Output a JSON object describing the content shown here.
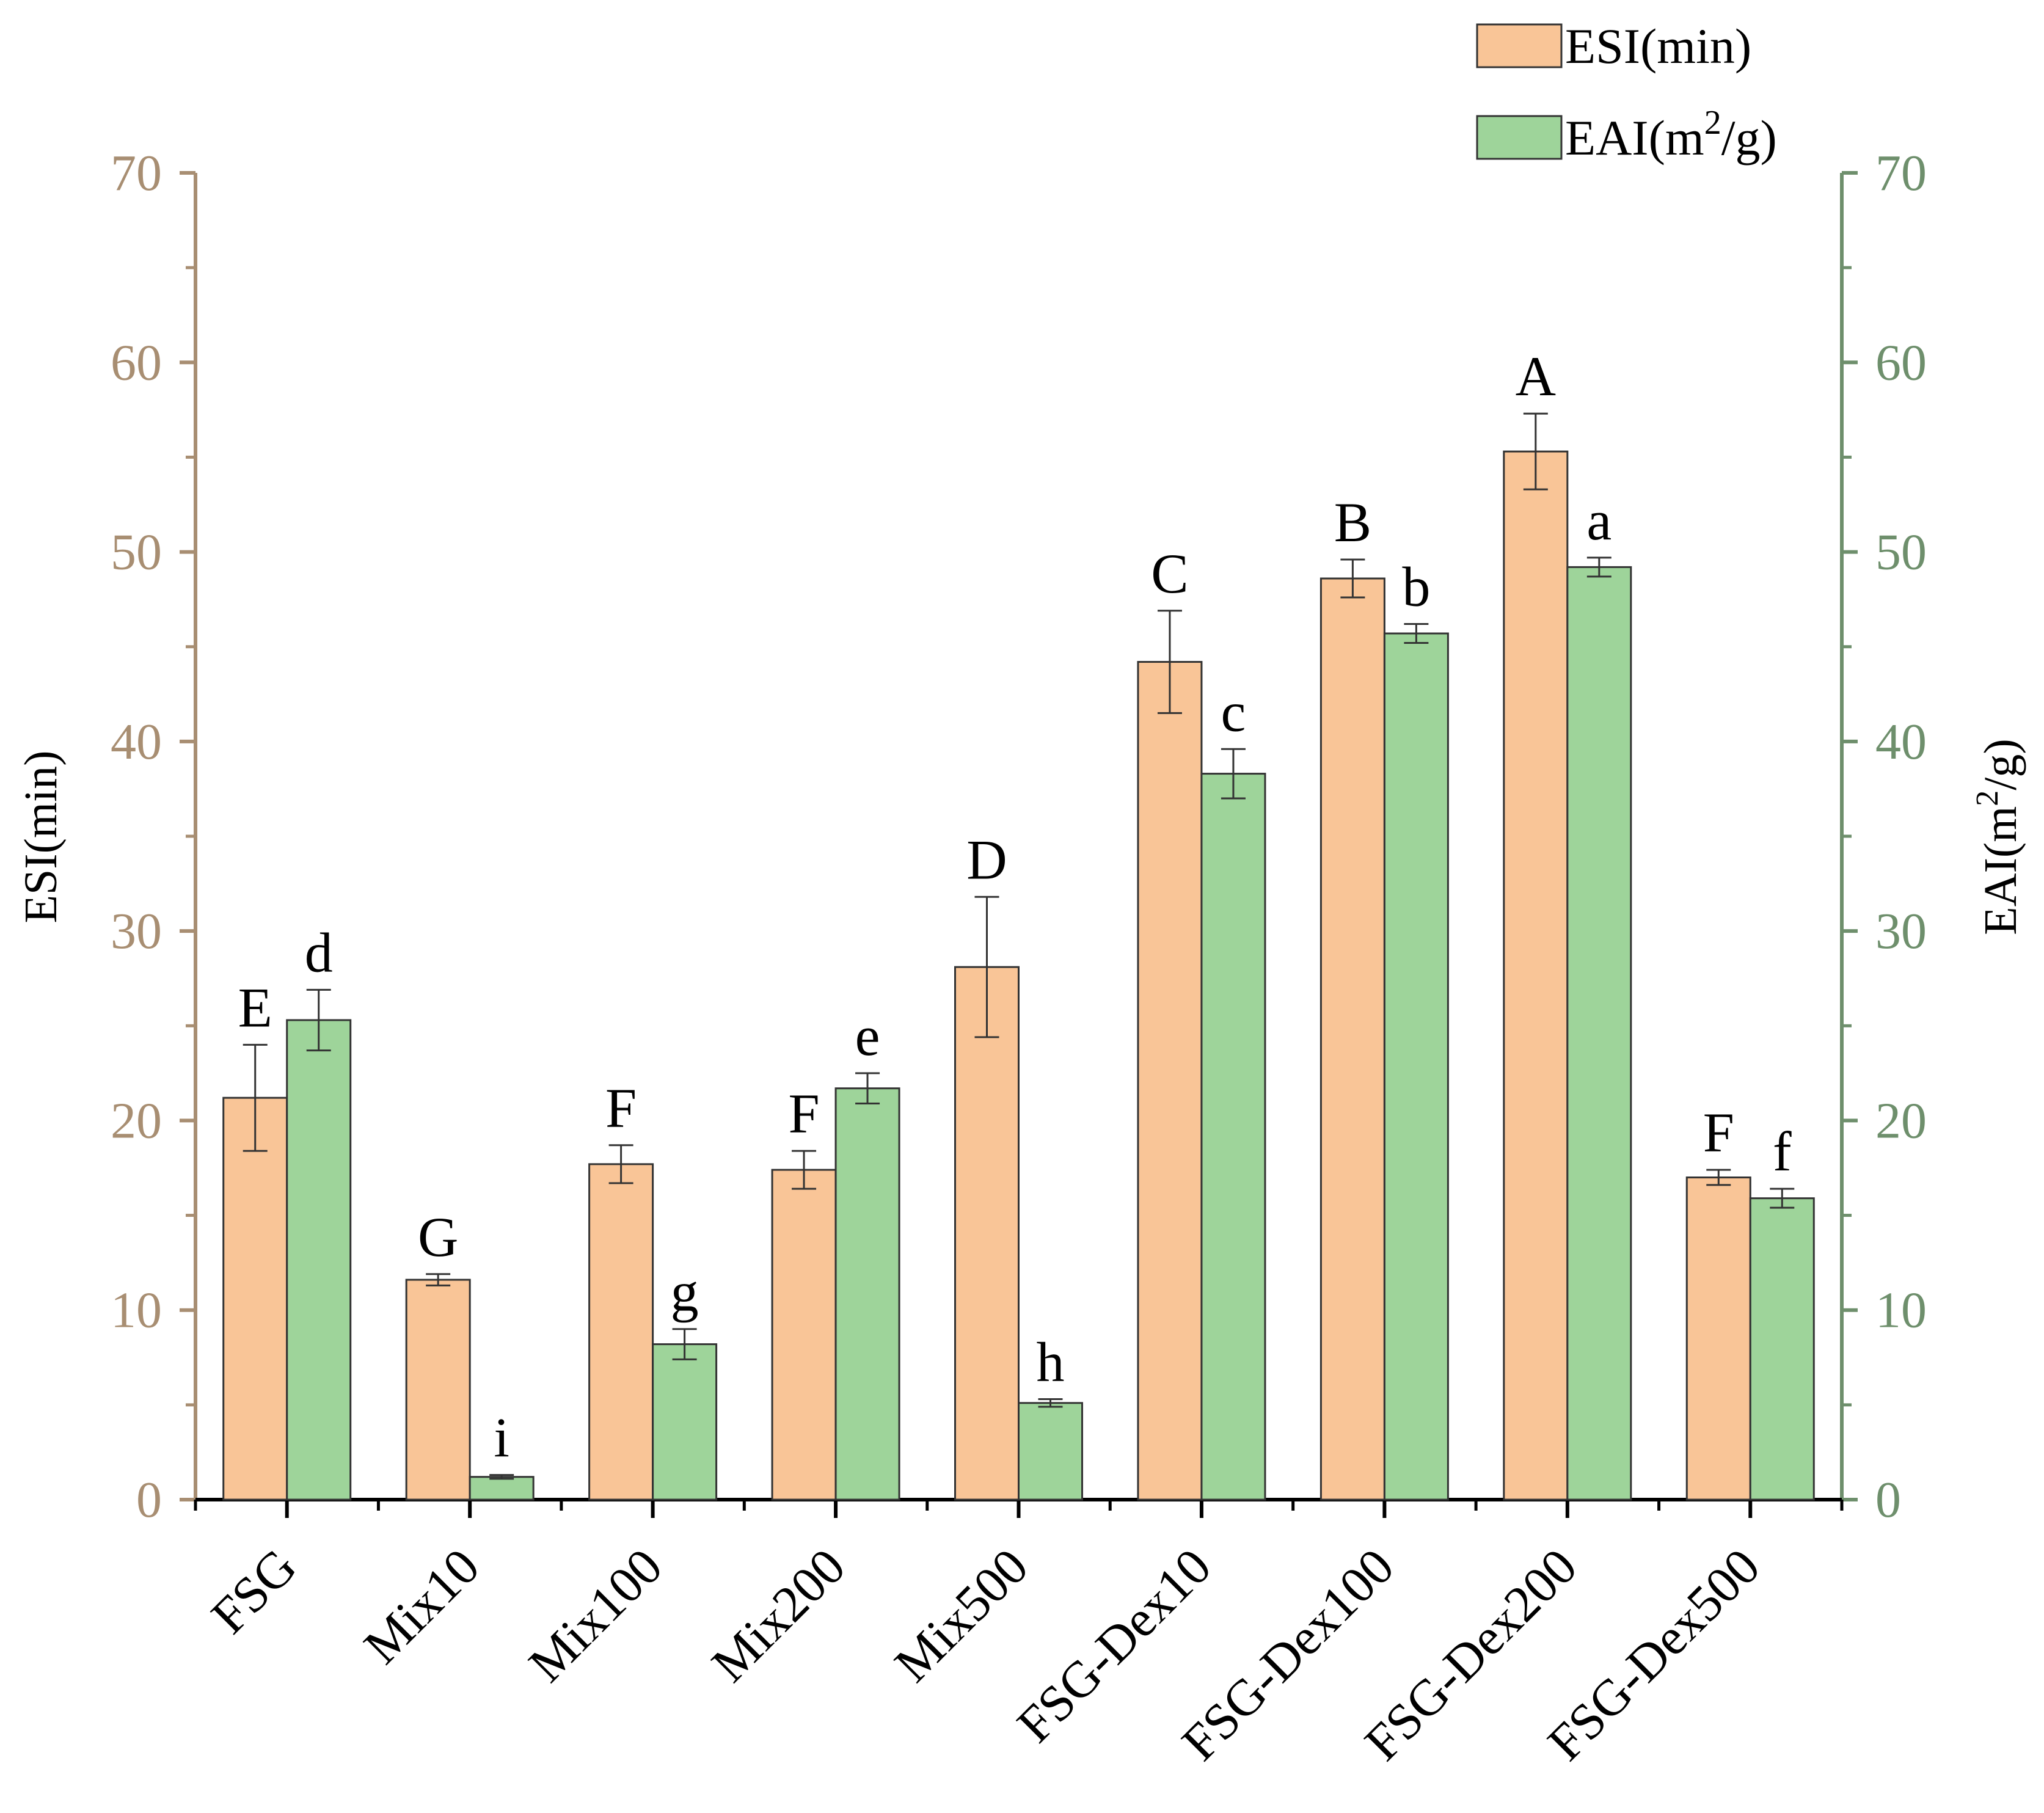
{
  "chart_data": {
    "type": "bar",
    "categories": [
      "FSG",
      "Mix10",
      "Mix100",
      "Mix200",
      "Mix500",
      "FSG-Dex10",
      "FSG-Dex100",
      "FSG-Dex200",
      "FSG-Dex500"
    ],
    "series": [
      {
        "name": "ESI(min)",
        "axis": "left",
        "color": "#F9C597",
        "values": [
          21.2,
          11.6,
          17.7,
          17.4,
          28.1,
          44.2,
          48.6,
          55.3,
          17.0
        ],
        "errors": [
          2.8,
          0.3,
          1.0,
          1.0,
          3.7,
          2.7,
          1.0,
          2.0,
          0.4
        ],
        "letters": [
          "E",
          "G",
          "F",
          "F",
          "D",
          "C",
          "B",
          "A",
          "F"
        ]
      },
      {
        "name": "EAI(m²/g)",
        "name_prefix": "EAI(m",
        "name_sup": "2",
        "name_suffix": "/g)",
        "axis": "right",
        "color": "#9ED49A",
        "values": [
          25.3,
          1.2,
          8.2,
          21.7,
          5.1,
          38.3,
          45.7,
          49.2,
          15.9
        ],
        "errors": [
          1.6,
          0.1,
          0.8,
          0.8,
          0.2,
          1.3,
          0.5,
          0.5,
          0.5
        ],
        "letters": [
          "d",
          "i",
          "g",
          "e",
          "h",
          "c",
          "b",
          "a",
          "f"
        ]
      }
    ],
    "left_axis": {
      "label": "ESI(min)",
      "range": [
        0,
        70
      ],
      "ticks": [
        "0",
        "10",
        "20",
        "30",
        "40",
        "50",
        "60",
        "70"
      ],
      "color": "#A88E72"
    },
    "right_axis": {
      "label_prefix": "EAI(m",
      "label_sup": "2",
      "label_suffix": "/g)",
      "range": [
        0,
        70
      ],
      "ticks": [
        "0",
        "10",
        "20",
        "30",
        "40",
        "50",
        "60",
        "70"
      ],
      "color": "#6E8F6C"
    },
    "legend_position": "top-right"
  }
}
